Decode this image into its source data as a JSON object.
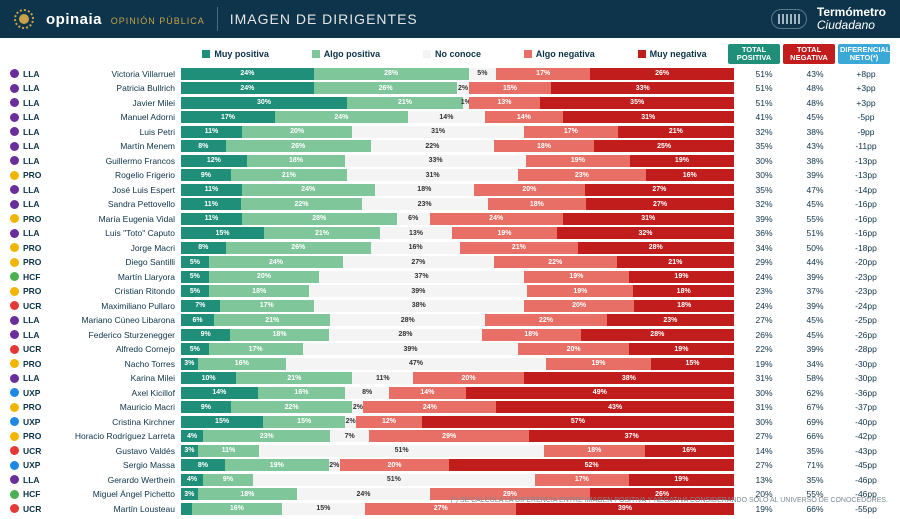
{
  "header": {
    "brand": "opinaia",
    "brand_sub": "OPINIÓN PÚBLICA",
    "title": "IMAGEN DE DIRIGENTES",
    "right_top": "Termómetro",
    "right_bottom": "Ciudadano"
  },
  "legend": {
    "items": [
      "Muy positiva",
      "Algo positiva",
      "No conoce",
      "Algo negativa",
      "Muy negativa"
    ],
    "colors": [
      "#1f8f7a",
      "#7fc79a",
      "#f4f4f4",
      "#e86f66",
      "#c11d1d"
    ]
  },
  "summary_headers": [
    {
      "label": "TOTAL POSITIVA",
      "bg": "#1f8f7a"
    },
    {
      "label": "TOTAL NEGATIVA",
      "bg": "#c11d1d"
    },
    {
      "label": "DIFERENCIAL NETO(*)",
      "bg": "#3aa9d8"
    }
  ],
  "party_colors": {
    "LLA": "#6a2e9c",
    "PRO": "#f2b600",
    "HCF": "#4caf50",
    "UCR": "#e53935",
    "UXP": "#1e88e5",
    "MID": "#6a2e9c"
  },
  "rows": [
    {
      "party": "LLA",
      "name": "Victoria Villarruel",
      "segs": [
        24,
        28,
        5,
        17,
        26
      ],
      "pos": "51%",
      "neg": "43%",
      "diff": "+8pp"
    },
    {
      "party": "LLA",
      "name": "Patricia Bullrich",
      "segs": [
        24,
        26,
        2,
        15,
        33
      ],
      "pos": "51%",
      "neg": "48%",
      "diff": "+3pp"
    },
    {
      "party": "LLA",
      "name": "Javier Milei",
      "segs": [
        30,
        21,
        1,
        13,
        35
      ],
      "pos": "51%",
      "neg": "48%",
      "diff": "+3pp"
    },
    {
      "party": "LLA",
      "name": "Manuel Adorni",
      "segs": [
        17,
        24,
        14,
        14,
        31
      ],
      "pos": "41%",
      "neg": "45%",
      "diff": "-5pp"
    },
    {
      "party": "LLA",
      "name": "Luis Petri",
      "segs": [
        11,
        20,
        31,
        17,
        21
      ],
      "pos": "32%",
      "neg": "38%",
      "diff": "-9pp"
    },
    {
      "party": "LLA",
      "name": "Martín Menem",
      "segs": [
        8,
        26,
        22,
        18,
        25
      ],
      "pos": "35%",
      "neg": "43%",
      "diff": "-11pp"
    },
    {
      "party": "LLA",
      "name": "Guillermo Francos",
      "segs": [
        12,
        18,
        33,
        19,
        19
      ],
      "pos": "30%",
      "neg": "38%",
      "diff": "-13pp"
    },
    {
      "party": "PRO",
      "name": "Rogelio Frigerio",
      "segs": [
        9,
        21,
        31,
        23,
        16
      ],
      "pos": "30%",
      "neg": "39%",
      "diff": "-13pp"
    },
    {
      "party": "LLA",
      "name": "José Luis Espert",
      "segs": [
        11,
        24,
        18,
        20,
        27
      ],
      "pos": "35%",
      "neg": "47%",
      "diff": "-14pp"
    },
    {
      "party": "LLA",
      "name": "Sandra Pettovello",
      "segs": [
        11,
        22,
        23,
        18,
        27
      ],
      "pos": "32%",
      "neg": "45%",
      "diff": "-16pp"
    },
    {
      "party": "PRO",
      "name": "María Eugenia Vidal",
      "segs": [
        11,
        28,
        6,
        24,
        31
      ],
      "pos": "39%",
      "neg": "55%",
      "diff": "-16pp"
    },
    {
      "party": "LLA",
      "name": "Luis \"Toto\" Caputo",
      "segs": [
        15,
        21,
        13,
        19,
        32
      ],
      "pos": "36%",
      "neg": "51%",
      "diff": "-16pp"
    },
    {
      "party": "PRO",
      "name": "Jorge Macri",
      "segs": [
        8,
        26,
        16,
        21,
        28
      ],
      "pos": "34%",
      "neg": "50%",
      "diff": "-18pp"
    },
    {
      "party": "PRO",
      "name": "Diego Santilli",
      "segs": [
        5,
        24,
        27,
        22,
        21
      ],
      "pos": "29%",
      "neg": "44%",
      "diff": "-20pp"
    },
    {
      "party": "HCF",
      "name": "Martín Llaryora",
      "segs": [
        5,
        20,
        37,
        19,
        19
      ],
      "pos": "24%",
      "neg": "39%",
      "diff": "-23pp"
    },
    {
      "party": "PRO",
      "name": "Cristian Ritondo",
      "segs": [
        5,
        18,
        39,
        19,
        18
      ],
      "pos": "23%",
      "neg": "37%",
      "diff": "-23pp"
    },
    {
      "party": "UCR",
      "name": "Maximiliano Pullaro",
      "segs": [
        7,
        17,
        38,
        20,
        18
      ],
      "pos": "24%",
      "neg": "39%",
      "diff": "-24pp"
    },
    {
      "party": "LLA",
      "name": "Mariano Cúneo Libarona",
      "segs": [
        6,
        21,
        28,
        22,
        23
      ],
      "pos": "27%",
      "neg": "45%",
      "diff": "-25pp"
    },
    {
      "party": "LLA",
      "name": "Federico Sturzenegger",
      "segs": [
        9,
        18,
        28,
        18,
        28
      ],
      "pos": "26%",
      "neg": "45%",
      "diff": "-26pp"
    },
    {
      "party": "UCR",
      "name": "Alfredo Cornejo",
      "segs": [
        5,
        17,
        39,
        20,
        19
      ],
      "pos": "22%",
      "neg": "39%",
      "diff": "-28pp"
    },
    {
      "party": "PRO",
      "name": "Nacho Torres",
      "segs": [
        3,
        16,
        47,
        19,
        15
      ],
      "pos": "19%",
      "neg": "34%",
      "diff": "-30pp"
    },
    {
      "party": "LLA",
      "name": "Karina Milei",
      "segs": [
        10,
        21,
        11,
        20,
        38
      ],
      "pos": "31%",
      "neg": "58%",
      "diff": "-30pp"
    },
    {
      "party": "UXP",
      "name": "Axel Kicillof",
      "segs": [
        14,
        16,
        8,
        14,
        49
      ],
      "pos": "30%",
      "neg": "62%",
      "diff": "-36pp"
    },
    {
      "party": "PRO",
      "name": "Mauricio Macri",
      "segs": [
        9,
        22,
        2,
        24,
        43
      ],
      "pos": "31%",
      "neg": "67%",
      "diff": "-37pp"
    },
    {
      "party": "UXP",
      "name": "Cristina Kirchner",
      "segs": [
        15,
        15,
        2,
        12,
        57
      ],
      "pos": "30%",
      "neg": "69%",
      "diff": "-40pp"
    },
    {
      "party": "PRO",
      "name": "Horacio Rodríguez Larreta",
      "segs": [
        4,
        23,
        7,
        29,
        37
      ],
      "pos": "27%",
      "neg": "66%",
      "diff": "-42pp"
    },
    {
      "party": "UCR",
      "name": "Gustavo Valdés",
      "segs": [
        3,
        11,
        51,
        18,
        16
      ],
      "pos": "14%",
      "neg": "35%",
      "diff": "-43pp"
    },
    {
      "party": "UXP",
      "name": "Sergio Massa",
      "segs": [
        8,
        19,
        2,
        20,
        52
      ],
      "pos": "27%",
      "neg": "71%",
      "diff": "-45pp"
    },
    {
      "party": "LLA",
      "name": "Gerardo Werthein",
      "segs": [
        4,
        9,
        51,
        17,
        19
      ],
      "pos": "13%",
      "neg": "35%",
      "diff": "-46pp"
    },
    {
      "party": "HCF",
      "name": "Miguel Ángel Pichetto",
      "segs": [
        3,
        18,
        24,
        29,
        26
      ],
      "pos": "20%",
      "neg": "55%",
      "diff": "-46pp"
    },
    {
      "party": "UCR",
      "name": "Martín Lousteau",
      "segs": [
        2,
        16,
        15,
        27,
        39
      ],
      "pos": "19%",
      "neg": "66%",
      "diff": "-55pp"
    }
  ],
  "footnote": "(*) SE CALCULA LA DIFERENCIA ENTRE IMAGEN POSITIVA Y NEGATIVA CONSIDERANDO SÓLO AL UNIVERSO DE CONOCEDORES.",
  "style": {
    "header_bg": "#0d344a",
    "no_conoce_text": "#333333",
    "row_h": 13.5,
    "label_threshold": 3
  }
}
